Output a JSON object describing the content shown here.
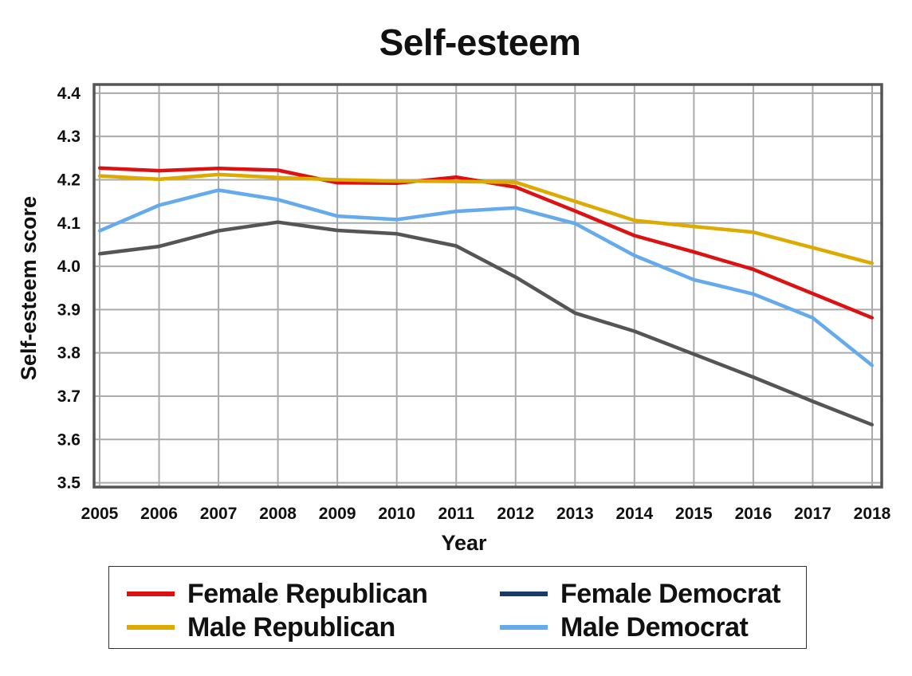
{
  "chart_data": {
    "type": "line",
    "title": "Self-esteem",
    "xlabel": "Year",
    "ylabel": "Self-esteem score",
    "x": [
      "2005",
      "2006",
      "2007",
      "2008",
      "2009",
      "2010",
      "2011",
      "2012",
      "2013",
      "2014",
      "2015",
      "2016",
      "2017",
      "2018"
    ],
    "yticks": [
      "3.5",
      "3.6",
      "3.7",
      "3.8",
      "3.9",
      "4.0",
      "4.1",
      "4.2",
      "4.3",
      "4.4"
    ],
    "ylim": [
      3.49,
      4.42
    ],
    "grid": true,
    "legend_position": "bottom",
    "series": [
      {
        "name": "Female Republican",
        "color": "#dd1111",
        "values": [
          4.227,
          4.221,
          4.226,
          4.222,
          4.193,
          4.192,
          4.206,
          4.183,
          4.128,
          4.071,
          4.033,
          3.993,
          3.937,
          3.881
        ]
      },
      {
        "name": "Male Republican",
        "color": "#ddaa00",
        "values": [
          4.209,
          4.201,
          4.212,
          4.205,
          4.2,
          4.197,
          4.196,
          4.194,
          4.15,
          4.106,
          4.092,
          4.079,
          4.043,
          4.007
        ]
      },
      {
        "name": "Female Democrat",
        "color": "#1a3a6a",
        "line_color": "#555555",
        "values": [
          4.029,
          4.046,
          4.082,
          4.102,
          4.083,
          4.075,
          4.047,
          3.975,
          3.892,
          3.85,
          3.797,
          3.744,
          3.688,
          3.634
        ]
      },
      {
        "name": "Male Democrat",
        "color": "#66aaee",
        "values": [
          4.082,
          4.141,
          4.176,
          4.154,
          4.116,
          4.108,
          4.127,
          4.135,
          4.099,
          4.025,
          3.969,
          3.936,
          3.881,
          3.771
        ]
      }
    ]
  }
}
